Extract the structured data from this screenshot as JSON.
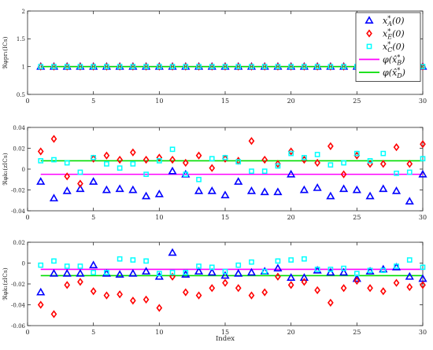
{
  "figure": {
    "xlabel": "Index",
    "legend": {
      "placement": "top-right",
      "entries": [
        {
          "label": "x*A(0)",
          "marker": "triangle",
          "color": "#0000ff"
        },
        {
          "label": "x*E(0)",
          "marker": "diamond",
          "color": "#ff0000"
        },
        {
          "label": "x*C(0)",
          "marker": "square",
          "color": "#00ffff"
        },
        {
          "label": "φ(x̂*B)",
          "marker": "line",
          "color": "#ff00ff"
        },
        {
          "label": "φ(x̂*D)",
          "marker": "line",
          "color": "#00dd00"
        }
      ]
    }
  },
  "chart_data": [
    {
      "type": "scatter",
      "ylabel": "ℜφpr₁(ICs)",
      "xlim": [
        0,
        30
      ],
      "ylim": [
        0.5,
        2
      ],
      "xticks": [
        "0",
        "5",
        "10",
        "15",
        "20",
        "25",
        "30"
      ],
      "yticks": [
        "0.5",
        "1",
        "1.5",
        "2"
      ],
      "grid": false,
      "x": [
        1,
        2,
        3,
        4,
        5,
        6,
        7,
        8,
        9,
        10,
        11,
        12,
        13,
        14,
        15,
        16,
        17,
        18,
        19,
        20,
        21,
        22,
        23,
        24,
        25,
        26,
        27,
        28,
        29,
        30
      ],
      "series": [
        {
          "name": "x*A(0)",
          "marker": "triangle",
          "color": "#0000ff",
          "values": [
            1,
            1,
            1,
            1,
            1,
            1,
            1,
            1,
            1,
            1,
            1,
            1,
            1,
            1,
            1,
            1,
            1,
            1,
            1,
            1,
            1,
            1,
            1,
            1,
            1,
            1,
            1,
            1,
            1,
            1
          ]
        },
        {
          "name": "x*E(0)",
          "marker": "diamond",
          "color": "#ff0000",
          "values": [
            1,
            1,
            1,
            1,
            1,
            1,
            1,
            1,
            1,
            1,
            1,
            1,
            1,
            1,
            1,
            1,
            1,
            1,
            1,
            1,
            1,
            1,
            1,
            1,
            1,
            1,
            1,
            1,
            1,
            1
          ]
        },
        {
          "name": "x*C(0)",
          "marker": "square",
          "color": "#00ffff",
          "values": [
            1,
            1,
            1,
            1,
            1,
            1,
            1,
            1,
            1,
            1,
            1,
            1,
            1,
            1,
            1,
            1,
            1,
            1,
            1,
            1,
            1,
            1,
            1,
            1,
            1,
            1,
            1,
            1,
            1,
            1
          ]
        }
      ],
      "hlines": [
        {
          "name": "φ(x̂*B)",
          "color": "#ff00ff",
          "value": 1.0
        },
        {
          "name": "φ(x̂*D)",
          "color": "#00dd00",
          "value": 1.0
        }
      ]
    },
    {
      "type": "scatter",
      "ylabel": "ℜφk₁(zICs)",
      "xlim": [
        0,
        30
      ],
      "ylim": [
        -0.04,
        0.04
      ],
      "xticks": [
        "0",
        "5",
        "10",
        "15",
        "20",
        "25",
        "30"
      ],
      "yticks": [
        "-0.04",
        "-0.02",
        "0",
        "0.02",
        "0.04"
      ],
      "grid": false,
      "x": [
        1,
        2,
        3,
        4,
        5,
        6,
        7,
        8,
        9,
        10,
        11,
        12,
        13,
        14,
        15,
        16,
        17,
        18,
        19,
        20,
        21,
        22,
        23,
        24,
        25,
        26,
        27,
        28,
        29,
        30
      ],
      "series": [
        {
          "name": "x*A(0)",
          "marker": "triangle",
          "color": "#0000ff",
          "values": [
            -0.012,
            -0.028,
            -0.021,
            -0.019,
            -0.012,
            -0.02,
            -0.019,
            -0.02,
            -0.026,
            -0.024,
            -0.002,
            -0.005,
            -0.021,
            -0.021,
            -0.025,
            -0.012,
            -0.021,
            -0.022,
            -0.022,
            -0.005,
            -0.02,
            -0.018,
            -0.026,
            -0.019,
            -0.02,
            -0.026,
            -0.019,
            -0.021,
            -0.031,
            -0.005
          ]
        },
        {
          "name": "x*E(0)",
          "marker": "diamond",
          "color": "#ff0000",
          "values": [
            0.017,
            0.029,
            -0.007,
            -0.014,
            0.01,
            0.013,
            0.009,
            0.016,
            0.009,
            0.011,
            0.009,
            0.006,
            0.013,
            0.001,
            0.01,
            0.008,
            0.027,
            0.009,
            0.005,
            0.017,
            0.009,
            0.006,
            0.022,
            -0.005,
            0.013,
            0.005,
            0.005,
            0.021,
            0.005,
            0.024
          ]
        },
        {
          "name": "x*C(0)",
          "marker": "square",
          "color": "#00ffff",
          "values": [
            0.008,
            0.009,
            0.006,
            -0.003,
            0.011,
            0.005,
            0.001,
            0.005,
            -0.005,
            0.008,
            0.019,
            -0.005,
            -0.01,
            0.01,
            0.011,
            0.007,
            -0.002,
            -0.002,
            0.003,
            0.015,
            0.011,
            0.014,
            0.004,
            0.006,
            0.015,
            0.008,
            0.015,
            -0.004,
            -0.003,
            0.01
          ]
        }
      ],
      "hlines": [
        {
          "name": "φ(x̂*B)",
          "color": "#ff00ff",
          "value": -0.005
        },
        {
          "name": "φ(x̂*D)",
          "color": "#00dd00",
          "value": 0.008
        }
      ]
    },
    {
      "type": "scatter",
      "ylabel": "ℜφk₁(zICs)",
      "xlim": [
        0,
        30
      ],
      "ylim": [
        -0.06,
        0.02
      ],
      "xticks": [
        "0",
        "5",
        "10",
        "15",
        "20",
        "25",
        "30"
      ],
      "yticks": [
        "-0.06",
        "-0.04",
        "-0.02",
        "0",
        "0.02"
      ],
      "grid": false,
      "x": [
        1,
        2,
        3,
        4,
        5,
        6,
        7,
        8,
        9,
        10,
        11,
        12,
        13,
        14,
        15,
        16,
        17,
        18,
        19,
        20,
        21,
        22,
        23,
        24,
        25,
        26,
        27,
        28,
        29,
        30
      ],
      "series": [
        {
          "name": "x*A(0)",
          "marker": "triangle",
          "color": "#0000ff",
          "values": [
            -0.028,
            -0.01,
            -0.01,
            -0.01,
            -0.002,
            -0.01,
            -0.011,
            -0.01,
            -0.008,
            -0.013,
            0.01,
            -0.011,
            -0.008,
            -0.009,
            -0.012,
            -0.01,
            -0.009,
            -0.008,
            -0.005,
            -0.014,
            -0.014,
            -0.007,
            -0.009,
            -0.009,
            -0.015,
            -0.008,
            -0.006,
            -0.004,
            -0.013,
            -0.015
          ]
        },
        {
          "name": "x*E(0)",
          "marker": "diamond",
          "color": "#ff0000",
          "values": [
            -0.04,
            -0.049,
            -0.021,
            -0.018,
            -0.027,
            -0.031,
            -0.03,
            -0.036,
            -0.035,
            -0.043,
            -0.013,
            -0.028,
            -0.031,
            -0.024,
            -0.019,
            -0.024,
            -0.031,
            -0.028,
            -0.013,
            -0.021,
            -0.018,
            -0.026,
            -0.038,
            -0.024,
            -0.017,
            -0.024,
            -0.027,
            -0.019,
            -0.023,
            -0.021
          ]
        },
        {
          "name": "x*C(0)",
          "marker": "square",
          "color": "#00ffff",
          "values": [
            -0.002,
            0.002,
            -0.003,
            -0.003,
            -0.009,
            -0.009,
            0.004,
            0.003,
            0.002,
            -0.01,
            -0.009,
            -0.009,
            -0.003,
            -0.004,
            -0.008,
            -0.002,
            0.001,
            -0.008,
            0.002,
            0.003,
            0.004,
            -0.006,
            -0.006,
            -0.005,
            -0.01,
            -0.007,
            -0.007,
            -0.003,
            0.003,
            -0.004
          ]
        }
      ],
      "hlines": [
        {
          "name": "φ(x̂*B)",
          "color": "#ff00ff",
          "value": -0.006
        },
        {
          "name": "φ(x̂*D)",
          "color": "#00dd00",
          "value": -0.012
        }
      ]
    }
  ]
}
